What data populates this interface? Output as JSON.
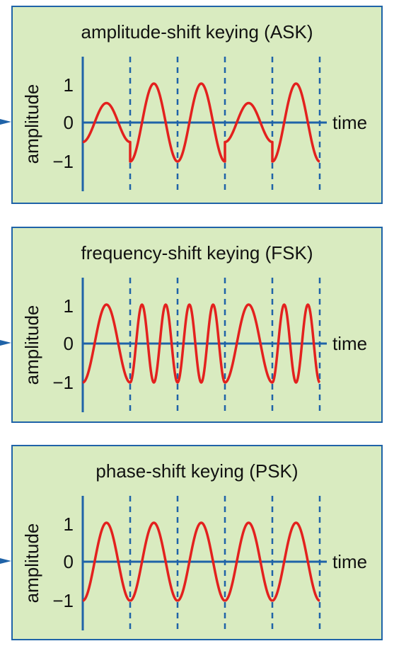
{
  "panels": [
    {
      "id": "ask",
      "title": "amplitude-shift keying (ASK)",
      "ylabel": "amplitude",
      "xlabel": "time",
      "yticks": [
        "1",
        "0",
        "−1"
      ],
      "symbols": [
        {
          "cycles": 1,
          "amplitude": 0.5
        },
        {
          "cycles": 1,
          "amplitude": 1
        },
        {
          "cycles": 1,
          "amplitude": 1
        },
        {
          "cycles": 1,
          "amplitude": 0.5
        },
        {
          "cycles": 1,
          "amplitude": 1
        }
      ]
    },
    {
      "id": "fsk",
      "title": "frequency-shift keying (FSK)",
      "ylabel": "amplitude",
      "xlabel": "time",
      "yticks": [
        "1",
        "0",
        "−1"
      ],
      "symbols": [
        {
          "cycles": 1,
          "amplitude": 1
        },
        {
          "cycles": 2,
          "amplitude": 1
        },
        {
          "cycles": 2,
          "amplitude": 1
        },
        {
          "cycles": 1,
          "amplitude": 1
        },
        {
          "cycles": 2,
          "amplitude": 1
        }
      ]
    },
    {
      "id": "psk",
      "title": "phase-shift keying (PSK)",
      "ylabel": "amplitude",
      "xlabel": "time",
      "yticks": [
        "1",
        "0",
        "−1"
      ],
      "symbols": [
        {
          "cycles": 1,
          "amplitude": 1,
          "phase_shift": false
        },
        {
          "cycles": 1,
          "amplitude": 1,
          "phase_shift": true
        },
        {
          "cycles": 1,
          "amplitude": 1,
          "phase_shift": true
        },
        {
          "cycles": 1,
          "amplitude": 1,
          "phase_shift": true
        },
        {
          "cycles": 1,
          "amplitude": 1,
          "phase_shift": true
        }
      ]
    }
  ],
  "colors": {
    "panel_background": "#d9ebc0",
    "frame": "#1f63a8",
    "axis": "#1f63a8",
    "waveform": "#e3211e",
    "text": "#111111"
  }
}
